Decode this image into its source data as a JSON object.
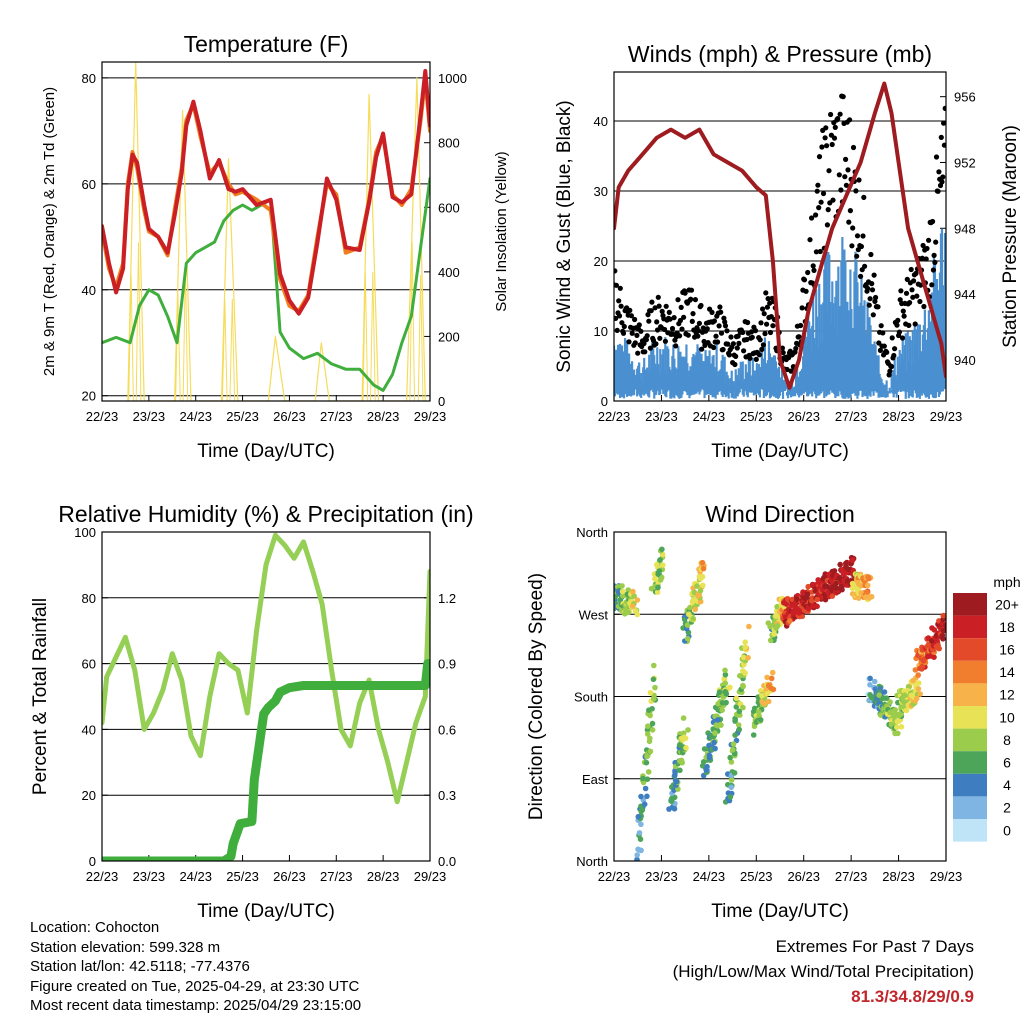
{
  "info": {
    "location": "Location: Cohocton",
    "elevation": "Station elevation: 599.328 m",
    "latlon": "Station lat/lon: 42.5118; -77.4376",
    "created": "Figure created on Tue, 2025-04-29, at 23:30 UTC",
    "recent": "Most recent data timestamp: 2025/04/29 23:15:00"
  },
  "extremes": {
    "title": "Extremes For Past 7 Days",
    "subtitle": "(High/Low/Max Wind/Total Precipitation)",
    "values": "81.3/34.8/29/0.9",
    "value_color": "#c0272d"
  },
  "chart_data": [
    {
      "id": "temperature",
      "type": "line",
      "title": "Temperature (F)",
      "xlabel": "Time (Day/UTC)",
      "ylabel": "2m & 9m T (Red, Orange) & 2m Td (Green)",
      "y2label": "Solar Insolation (Yellow)",
      "xticks": [
        "22/23",
        "23/23",
        "24/23",
        "25/23",
        "26/23",
        "27/23",
        "28/23",
        "29/23"
      ],
      "xlim": [
        0,
        7
      ],
      "ylim": [
        19,
        83
      ],
      "yticks": [
        20,
        40,
        60,
        80
      ],
      "y2lim": [
        0,
        1050
      ],
      "y2ticks": [
        0,
        200,
        400,
        600,
        800,
        1000
      ],
      "grid": true,
      "series": [
        {
          "color": "#f07e1e",
          "axis": "left",
          "width": 4,
          "x": [
            0,
            0.15,
            0.3,
            0.45,
            0.55,
            0.65,
            0.75,
            0.9,
            1.0,
            1.2,
            1.4,
            1.55,
            1.7,
            1.8,
            1.95,
            2.1,
            2.3,
            2.5,
            2.7,
            2.85,
            3.0,
            3.3,
            3.6,
            3.8,
            4.0,
            4.2,
            4.4,
            4.6,
            4.8,
            5.0,
            5.2,
            5.5,
            5.7,
            5.85,
            6.0,
            6.2,
            6.4,
            6.6,
            6.8,
            6.9,
            7.0
          ],
          "y": [
            51,
            44,
            40.5,
            45,
            60,
            66,
            63,
            55,
            51,
            50,
            46.5,
            55,
            63,
            72,
            75,
            69,
            62,
            64,
            60,
            58,
            58.5,
            57,
            55,
            42,
            37,
            36,
            39,
            50,
            60,
            58,
            47,
            48,
            57,
            66,
            69,
            58,
            56,
            59,
            72,
            80,
            70
          ]
        },
        {
          "color": "#c91f25",
          "axis": "left",
          "width": 4,
          "x": [
            0,
            0.15,
            0.3,
            0.45,
            0.55,
            0.65,
            0.75,
            0.9,
            1.0,
            1.2,
            1.4,
            1.55,
            1.7,
            1.8,
            1.95,
            2.1,
            2.3,
            2.5,
            2.7,
            2.85,
            3.0,
            3.3,
            3.6,
            3.8,
            4.0,
            4.2,
            4.4,
            4.6,
            4.8,
            5.0,
            5.2,
            5.5,
            5.7,
            5.85,
            6.0,
            6.2,
            6.4,
            6.6,
            6.8,
            6.9,
            7.0
          ],
          "y": [
            52,
            45,
            39.5,
            44,
            59,
            65.5,
            64,
            56,
            51.5,
            50,
            47,
            54,
            62,
            71,
            75.5,
            70,
            61,
            64.5,
            59,
            58.5,
            59,
            56,
            57,
            43,
            38,
            35.5,
            38.5,
            49,
            61,
            57,
            48,
            47.5,
            56.5,
            65,
            69.5,
            57.5,
            56.5,
            58,
            73,
            81.3,
            71
          ]
        },
        {
          "color": "#3fae3c",
          "axis": "left",
          "width": 3,
          "x": [
            0,
            0.3,
            0.6,
            0.8,
            1.0,
            1.2,
            1.4,
            1.6,
            1.8,
            2.0,
            2.2,
            2.4,
            2.6,
            2.8,
            3.0,
            3.2,
            3.4,
            3.6,
            3.8,
            4.0,
            4.3,
            4.6,
            4.9,
            5.2,
            5.5,
            5.8,
            6.0,
            6.2,
            6.4,
            6.6,
            6.8,
            7.0
          ],
          "y": [
            30,
            31,
            30,
            37,
            40,
            39,
            35,
            30,
            45,
            47,
            48,
            49,
            53,
            55,
            56,
            55,
            56,
            57,
            32,
            29,
            27,
            28,
            26,
            25,
            25,
            22,
            21,
            24,
            30,
            35,
            48,
            61
          ]
        },
        {
          "color": "#f5dc5a",
          "axis": "right",
          "width": 1.2,
          "x": [
            0.55,
            0.72,
            0.9,
            1.55,
            1.72,
            1.9,
            2.55,
            2.7,
            2.9,
            3.55,
            3.7,
            3.9,
            4.55,
            4.68,
            4.85,
            5.55,
            5.7,
            5.9,
            6.5,
            6.72,
            6.9
          ],
          "y": [
            0,
            1050,
            0,
            0,
            900,
            0,
            0,
            750,
            0,
            0,
            200,
            0,
            0,
            180,
            0,
            0,
            950,
            0,
            0,
            1000,
            0
          ]
        }
      ]
    },
    {
      "id": "winds",
      "type": "scatter",
      "title": "Winds (mph) & Pressure (mb)",
      "xlabel": "Time (Day/UTC)",
      "ylabel": "Sonic Wind & Gust (Blue, Black)",
      "y2label": "Station Pressure (Maroon)",
      "xticks": [
        "22/23",
        "23/23",
        "24/23",
        "25/23",
        "26/23",
        "27/23",
        "28/23",
        "29/23"
      ],
      "xlim": [
        0,
        7
      ],
      "ylim": [
        0,
        47
      ],
      "yticks": [
        0,
        10,
        20,
        30,
        40
      ],
      "y2lim": [
        937.5,
        957.5
      ],
      "y2ticks": [
        940,
        944,
        948,
        952,
        956
      ],
      "grid": true,
      "gust_color": "#000000",
      "wind_color": "#4a90d0",
      "pressure_color": "#9e1b20",
      "wind_profile": {
        "x": [
          0,
          0.3,
          0.6,
          0.8,
          1.0,
          1.3,
          1.6,
          1.9,
          2.2,
          2.5,
          2.8,
          3.0,
          3.2,
          3.4,
          3.6,
          3.8,
          4.0,
          4.2,
          4.4,
          4.6,
          4.8,
          5.0,
          5.2,
          5.4,
          5.6,
          5.8,
          6.0,
          6.2,
          6.4,
          6.6,
          6.8,
          7.0
        ],
        "y": [
          8,
          6,
          4,
          6,
          7,
          6,
          7,
          5,
          6,
          3,
          5,
          4,
          7,
          6,
          2,
          3,
          8,
          12,
          15,
          16,
          18,
          17,
          13,
          9,
          4,
          2,
          6,
          7,
          9,
          11,
          16,
          22
        ]
      },
      "gust_profile": {
        "x": [
          0,
          0.3,
          0.6,
          0.8,
          1.0,
          1.3,
          1.6,
          1.9,
          2.2,
          2.5,
          2.8,
          3.0,
          3.2,
          3.4,
          3.6,
          3.8,
          4.0,
          4.2,
          4.4,
          4.6,
          4.8,
          5.0,
          5.2,
          5.4,
          5.6,
          5.8,
          6.0,
          6.2,
          6.4,
          6.6,
          6.8,
          7.0
        ],
        "y": [
          15,
          11,
          8,
          11,
          12,
          11,
          13,
          10,
          11,
          7,
          9,
          8,
          12,
          11,
          5,
          6,
          14,
          22,
          30,
          34,
          35,
          32,
          25,
          18,
          9,
          5,
          12,
          14,
          16,
          19,
          27,
          33
        ]
      },
      "pressure": {
        "x": [
          0,
          0.1,
          0.3,
          0.6,
          0.9,
          1.2,
          1.5,
          1.8,
          2.1,
          2.4,
          2.7,
          3.0,
          3.2,
          3.35,
          3.5,
          3.7,
          3.9,
          4.1,
          4.3,
          4.6,
          4.9,
          5.2,
          5.5,
          5.7,
          5.85,
          6.0,
          6.2,
          6.4,
          6.6,
          6.8,
          6.9,
          7.0
        ],
        "y": [
          948,
          950.5,
          951.5,
          952.5,
          953.5,
          954,
          953.5,
          954,
          952.5,
          952,
          951.5,
          950.5,
          950,
          946,
          940,
          938.3,
          940,
          943,
          945,
          948,
          950,
          952,
          955,
          956.8,
          955,
          952,
          948,
          946,
          944,
          942,
          941,
          939
        ]
      }
    },
    {
      "id": "humidity",
      "type": "line",
      "title": "Relative Humidity (%) & Precipitation (in)",
      "xlabel": "Time (Day/UTC)",
      "ylabel": "Percent & Total Rainfall",
      "xticks": [
        "22/23",
        "23/23",
        "24/23",
        "25/23",
        "26/23",
        "27/23",
        "28/23",
        "29/23"
      ],
      "xlim": [
        0,
        7
      ],
      "ylim": [
        0,
        100
      ],
      "yticks": [
        0,
        20,
        40,
        60,
        80,
        100
      ],
      "y2lim": [
        0,
        1.5
      ],
      "y2ticks": [
        "0.0",
        "0.3",
        "0.6",
        "0.9",
        "1.2"
      ],
      "y2tick_values": [
        0,
        0.3,
        0.6,
        0.9,
        1.2
      ],
      "grid": true,
      "series": [
        {
          "color": "#95cf55",
          "axis": "left",
          "width": 5,
          "x": [
            0,
            0.1,
            0.3,
            0.5,
            0.7,
            0.9,
            1.1,
            1.3,
            1.5,
            1.7,
            1.9,
            2.1,
            2.3,
            2.5,
            2.7,
            2.9,
            3.1,
            3.3,
            3.5,
            3.7,
            3.9,
            4.1,
            4.3,
            4.5,
            4.7,
            4.9,
            5.1,
            5.3,
            5.5,
            5.7,
            5.9,
            6.1,
            6.3,
            6.5,
            6.7,
            6.9,
            7.0
          ],
          "y": [
            42,
            56,
            62,
            68,
            58,
            40,
            45,
            52,
            63,
            55,
            38,
            32,
            50,
            63,
            60,
            58,
            45,
            70,
            90,
            99,
            96,
            92,
            97,
            88,
            78,
            58,
            40,
            35,
            48,
            55,
            40,
            30,
            18,
            30,
            42,
            50,
            88
          ]
        },
        {
          "color": "#3fae3c",
          "axis": "right",
          "width": 9,
          "x": [
            0,
            2.6,
            2.75,
            2.8,
            2.95,
            3.2,
            3.25,
            3.45,
            3.55,
            3.7,
            3.8,
            4.0,
            4.3,
            5.0,
            6.0,
            6.9,
            6.95,
            7.0
          ],
          "y": [
            0,
            0,
            0.02,
            0.08,
            0.17,
            0.18,
            0.37,
            0.67,
            0.7,
            0.73,
            0.77,
            0.79,
            0.8,
            0.8,
            0.8,
            0.8,
            0.9,
            0.9
          ]
        }
      ]
    },
    {
      "id": "direction",
      "type": "scatter",
      "title": "Wind Direction",
      "xlabel": "Time (Day/UTC)",
      "ylabel": "Direction (Colored By Speed)",
      "xticks": [
        "22/23",
        "23/23",
        "24/23",
        "25/23",
        "26/23",
        "27/23",
        "28/23",
        "29/23"
      ],
      "xlim": [
        0,
        7
      ],
      "ylim": [
        0,
        360
      ],
      "ytick_labels": [
        "North",
        "East",
        "South",
        "West",
        "North"
      ],
      "ytick_values": [
        0,
        90,
        180,
        270,
        360
      ],
      "grid": true,
      "segments": [
        {
          "x": [
            0,
            0.45
          ],
          "dir": [
            290,
            280
          ],
          "speed": [
            5,
            10
          ]
        },
        {
          "x": [
            0.5,
            0.85
          ],
          "dir": [
            10,
            200
          ],
          "speed": [
            4,
            9
          ]
        },
        {
          "x": [
            0.85,
            1.0
          ],
          "dir": [
            300,
            330
          ],
          "speed": [
            7,
            9
          ]
        },
        {
          "x": [
            1.2,
            1.5
          ],
          "dir": [
            60,
            150
          ],
          "speed": [
            4,
            9
          ]
        },
        {
          "x": [
            1.5,
            1.9
          ],
          "dir": [
            250,
            320
          ],
          "speed": [
            6,
            12
          ]
        },
        {
          "x": [
            1.9,
            2.4
          ],
          "dir": [
            100,
            200
          ],
          "speed": [
            4,
            8
          ]
        },
        {
          "x": [
            2.4,
            2.8
          ],
          "dir": [
            60,
            250
          ],
          "speed": [
            4,
            10
          ]
        },
        {
          "x": [
            2.95,
            3.3
          ],
          "dir": [
            150,
            200
          ],
          "speed": [
            6,
            12
          ]
        },
        {
          "x": [
            3.3,
            3.6
          ],
          "dir": [
            250,
            280
          ],
          "speed": [
            6,
            12
          ]
        },
        {
          "x": [
            3.6,
            5.05
          ],
          "dir": [
            270,
            320
          ],
          "speed": [
            17,
            20
          ]
        },
        {
          "x": [
            5.05,
            5.4
          ],
          "dir": [
            300,
            300
          ],
          "speed": [
            10,
            14
          ]
        },
        {
          "x": [
            5.4,
            6.0
          ],
          "dir": [
            190,
            150
          ],
          "speed": [
            3,
            9
          ]
        },
        {
          "x": [
            6.0,
            6.4
          ],
          "dir": [
            170,
            190
          ],
          "speed": [
            8,
            11
          ]
        },
        {
          "x": [
            6.4,
            7.0
          ],
          "dir": [
            215,
            260
          ],
          "speed": [
            14,
            19
          ]
        }
      ],
      "colorbar": {
        "title": "mph",
        "labels": [
          "20+",
          "18",
          "16",
          "14",
          "12",
          "10",
          "8",
          "6",
          "4",
          "2",
          "0"
        ],
        "colors": [
          "#9e1b20",
          "#c91f25",
          "#e24a2a",
          "#f07e2e",
          "#f7b34a",
          "#e8e356",
          "#9bcc4b",
          "#4da55a",
          "#3e7ec0",
          "#7fb5e3",
          "#bfe3f7"
        ]
      }
    }
  ]
}
